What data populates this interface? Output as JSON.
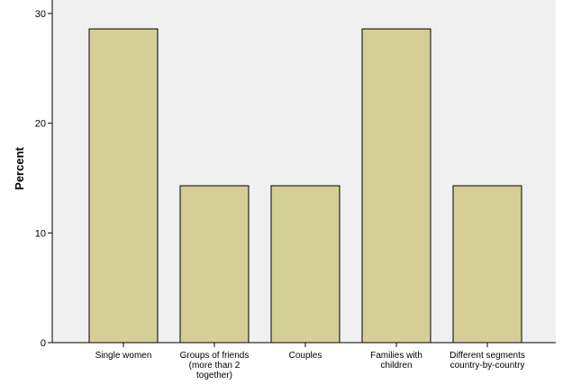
{
  "chart_data": {
    "type": "bar",
    "title": "",
    "xlabel": "",
    "ylabel": "Percent",
    "ylim": [
      0,
      30
    ],
    "yticks": [
      0,
      10,
      20,
      30
    ],
    "categories": [
      [
        "Single women"
      ],
      [
        "Groups of friends",
        "(more than 2",
        "together)"
      ],
      [
        "Couples"
      ],
      [
        "Families with",
        "children"
      ],
      [
        "Different segments",
        "country-by-country"
      ]
    ],
    "values": [
      28.6,
      14.3,
      14.3,
      28.6,
      14.3
    ],
    "grid": false,
    "colors": {
      "plot_background": "#f0f0f0",
      "bar_fill": "#d4cf97",
      "bar_stroke": "#000000",
      "axis": "#000000"
    }
  }
}
